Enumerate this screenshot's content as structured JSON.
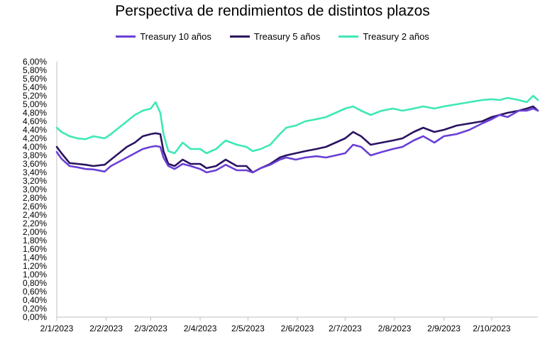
{
  "chart_data": {
    "type": "line",
    "title": "Perspectiva de rendimientos de distintos plazos",
    "xlabel": "",
    "ylabel": "",
    "ylim": [
      0,
      6
    ],
    "y_ticks": [
      "0,00%",
      "0,20%",
      "0,40%",
      "0,60%",
      "0,80%",
      "1,00%",
      "1,20%",
      "1,40%",
      "1,60%",
      "1,80%",
      "2,00%",
      "2,20%",
      "2,40%",
      "2,60%",
      "2,80%",
      "3,00%",
      "3,20%",
      "3,40%",
      "3,60%",
      "3,80%",
      "4,00%",
      "4,20%",
      "4,40%",
      "4,60%",
      "4,80%",
      "5,00%",
      "5,20%",
      "5,40%",
      "5,60%",
      "5,80%",
      "6,00%"
    ],
    "x_ticks": [
      "2/1/2023",
      "2/2/2023",
      "2/3/2023",
      "2/4/2023",
      "2/5/2023",
      "2/6/2023",
      "2/7/2023",
      "2/8/2023",
      "2/9/2023",
      "2/10/2023"
    ],
    "x_tick_dates": [
      "2023-01-02",
      "2023-02-02",
      "2023-03-02",
      "2023-04-02",
      "2023-05-02",
      "2023-06-02",
      "2023-07-02",
      "2023-08-02",
      "2023-09-02",
      "2023-10-02"
    ],
    "x_range": [
      "2023-01-02",
      "2023-10-31"
    ],
    "grid": false,
    "legend_position": "top-center",
    "x": [
      "2023-01-02",
      "2023-01-05",
      "2023-01-10",
      "2023-01-15",
      "2023-01-20",
      "2023-01-25",
      "2023-02-01",
      "2023-02-05",
      "2023-02-10",
      "2023-02-15",
      "2023-02-20",
      "2023-02-25",
      "2023-03-02",
      "2023-03-05",
      "2023-03-08",
      "2023-03-10",
      "2023-03-13",
      "2023-03-17",
      "2023-03-22",
      "2023-03-27",
      "2023-04-02",
      "2023-04-06",
      "2023-04-12",
      "2023-04-18",
      "2023-04-25",
      "2023-05-01",
      "2023-05-05",
      "2023-05-10",
      "2023-05-16",
      "2023-05-22",
      "2023-05-26",
      "2023-06-01",
      "2023-06-07",
      "2023-06-14",
      "2023-06-20",
      "2023-06-26",
      "2023-07-02",
      "2023-07-07",
      "2023-07-12",
      "2023-07-18",
      "2023-07-25",
      "2023-08-01",
      "2023-08-07",
      "2023-08-14",
      "2023-08-20",
      "2023-08-27",
      "2023-09-02",
      "2023-09-10",
      "2023-09-18",
      "2023-09-26",
      "2023-10-02",
      "2023-10-07",
      "2023-10-12",
      "2023-10-19",
      "2023-10-24",
      "2023-10-28",
      "2023-10-31"
    ],
    "series": [
      {
        "name": "Treasury 10 años",
        "color": "#6a3fd6",
        "values": [
          3.88,
          3.72,
          3.55,
          3.52,
          3.48,
          3.47,
          3.42,
          3.55,
          3.65,
          3.75,
          3.85,
          3.95,
          4.0,
          4.02,
          4.0,
          3.75,
          3.55,
          3.48,
          3.6,
          3.55,
          3.48,
          3.4,
          3.45,
          3.58,
          3.45,
          3.45,
          3.4,
          3.5,
          3.58,
          3.7,
          3.75,
          3.7,
          3.75,
          3.78,
          3.75,
          3.8,
          3.85,
          4.05,
          4.0,
          3.8,
          3.88,
          3.95,
          4.0,
          4.15,
          4.25,
          4.1,
          4.25,
          4.3,
          4.4,
          4.55,
          4.65,
          4.75,
          4.7,
          4.85,
          4.85,
          4.9,
          4.85
        ]
      },
      {
        "name": "Treasury 5 años",
        "color": "#2a1360",
        "values": [
          4.0,
          3.85,
          3.62,
          3.6,
          3.58,
          3.55,
          3.58,
          3.7,
          3.85,
          4.0,
          4.1,
          4.25,
          4.3,
          4.32,
          4.3,
          3.9,
          3.6,
          3.55,
          3.7,
          3.6,
          3.6,
          3.5,
          3.55,
          3.7,
          3.55,
          3.55,
          3.4,
          3.5,
          3.6,
          3.75,
          3.8,
          3.85,
          3.9,
          3.95,
          4.0,
          4.1,
          4.2,
          4.35,
          4.25,
          4.05,
          4.1,
          4.15,
          4.2,
          4.35,
          4.45,
          4.35,
          4.4,
          4.5,
          4.55,
          4.6,
          4.7,
          4.75,
          4.8,
          4.85,
          4.9,
          4.95,
          4.85
        ]
      },
      {
        "name": "Treasury 2 años",
        "color": "#3ee8b5",
        "values": [
          4.45,
          4.35,
          4.25,
          4.2,
          4.18,
          4.25,
          4.2,
          4.3,
          4.45,
          4.6,
          4.75,
          4.85,
          4.9,
          5.05,
          4.8,
          4.3,
          3.9,
          3.85,
          4.1,
          3.95,
          3.95,
          3.85,
          3.95,
          4.15,
          4.05,
          4.0,
          3.9,
          3.95,
          4.05,
          4.3,
          4.45,
          4.5,
          4.6,
          4.65,
          4.7,
          4.8,
          4.9,
          4.95,
          4.85,
          4.75,
          4.85,
          4.9,
          4.85,
          4.9,
          4.95,
          4.9,
          4.95,
          5.0,
          5.05,
          5.1,
          5.12,
          5.1,
          5.15,
          5.1,
          5.05,
          5.2,
          5.1
        ]
      }
    ]
  }
}
